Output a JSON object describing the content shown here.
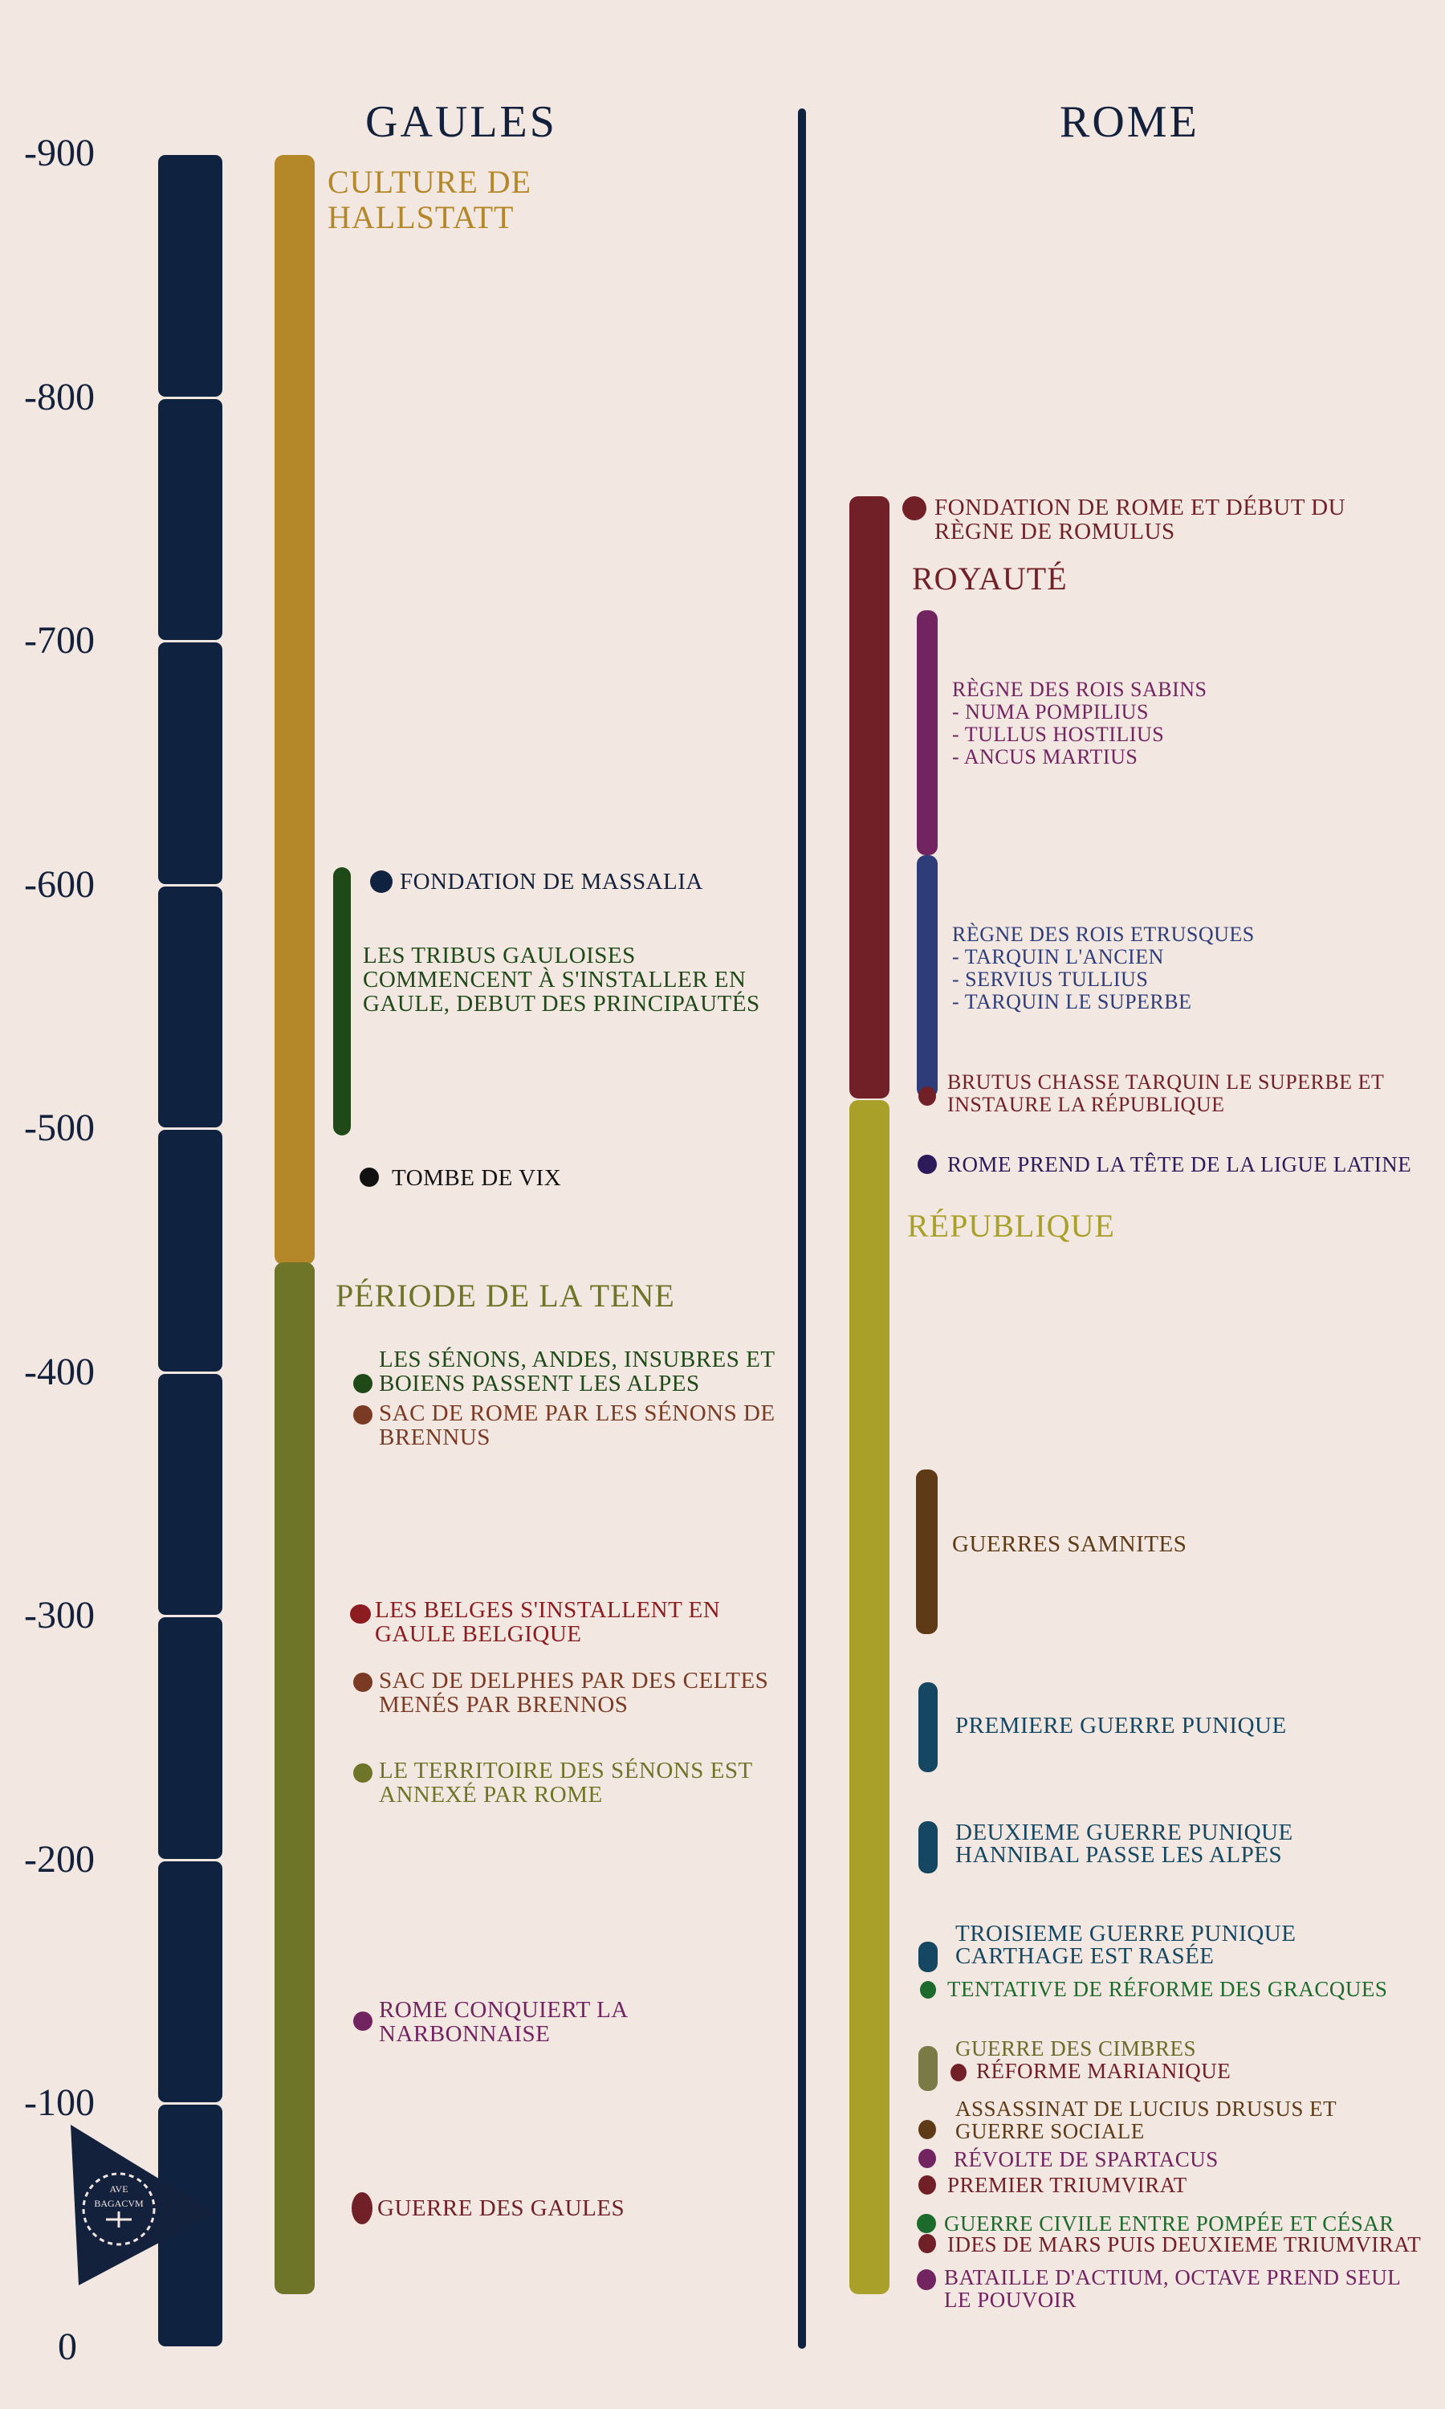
{
  "headers": {
    "left": "GAULES",
    "right": "ROME"
  },
  "timeline": {
    "ticks": [
      "-900",
      "-800",
      "-700",
      "-600",
      "-500",
      "-400",
      "-300",
      "-200",
      "-100",
      "0"
    ]
  },
  "logo": {
    "text_top": "AVE",
    "text_bottom": "BAGACVM"
  },
  "gaules": {
    "periods": {
      "hallstatt": "CULTURE DE HALLSTATT",
      "tene": "PÉRIODE DE LA TENE"
    },
    "events": {
      "massalia": "FONDATION DE MASSALIA",
      "tribus": "LES TRIBUS GAULOISES COMMENCENT À S'INSTALLER EN GAULE, DEBUT DES PRINCIPAUTÉS",
      "vix": "TOMBE DE VIX",
      "senons_alpes": "LES SÉNONS, ANDES, INSUBRES ET BOIENS PASSENT LES ALPES",
      "sac_rome": "SAC DE ROME PAR LES SÉNONS DE BRENNUS",
      "belges": "LES BELGES S'INSTALLENT EN GAULE BELGIQUE",
      "delphes": "SAC DE DELPHES PAR DES CELTES MENÉS PAR BRENNOS",
      "territoire": "LE TERRITOIRE DES SÉNONS EST ANNEXÉ PAR ROME",
      "narbonnaise": "ROME CONQUIERT LA NARBONNAISE",
      "guerre_gaules": "GUERRE DES GAULES"
    }
  },
  "rome": {
    "periods": {
      "royaute": "ROYAUTÉ",
      "republique": "RÉPUBLIQUE"
    },
    "events": {
      "fondation": "FONDATION DE ROME ET DÉBUT DU RÈGNE DE ROMULUS",
      "sabins": "RÈGNE DES ROIS SABINS",
      "sabins_kings": [
        "- NUMA POMPILIUS",
        "- TULLUS HOSTILIUS",
        "- ANCUS MARTIUS"
      ],
      "etrusques": "RÈGNE DES ROIS ETRUSQUES",
      "etrusques_kings": [
        "- TARQUIN L'ANCIEN",
        "- SERVIUS TULLIUS",
        "- TARQUIN LE SUPERBE"
      ],
      "brutus": "BRUTUS CHASSE TARQUIN LE SUPERBE ET INSTAURE LA RÉPUBLIQUE",
      "ligue": "ROME PREND LA TÊTE DE LA LIGUE LATINE",
      "samnites": "GUERRES SAMNITES",
      "punique1": "PREMIERE GUERRE PUNIQUE",
      "punique2_a": "DEUXIEME GUERRE PUNIQUE",
      "punique2_b": "HANNIBAL PASSE LES ALPES",
      "punique3_a": "TROISIEME GUERRE PUNIQUE",
      "punique3_b": "CARTHAGE EST RASÉE",
      "gracques": "TENTATIVE DE RÉFORME DES GRACQUES",
      "cimbres": "GUERRE DES CIMBRES",
      "mariane": "RÉFORME MARIANIQUE",
      "drusus": "ASSASSINAT DE LUCIUS DRUSUS ET GUERRE SOCIALE",
      "spartacus": "RÉVOLTE DE SPARTACUS",
      "triumvirat1": "PREMIER TRIUMVIRAT",
      "civile": "GUERRE CIVILE ENTRE POMPÉE ET CÉSAR",
      "ides": "IDES DE MARS PUIS DEUXIEME TRIUMVIRAT",
      "actium": "BATAILLE D'ACTIUM, OCTAVE PREND SEUL LE POUVOIR"
    }
  },
  "colors": {
    "navy": "#0f2240",
    "hallstatt": "#b48728",
    "tene": "#6e7529",
    "royaute": "#722028",
    "republique": "#a9a02a",
    "sabins": "#722461",
    "etrusques": "#2e3c7a",
    "samnites": "#5e3a16",
    "punic": "#164762",
    "green": "#1f4a18",
    "brown": "#7a3a24"
  }
}
